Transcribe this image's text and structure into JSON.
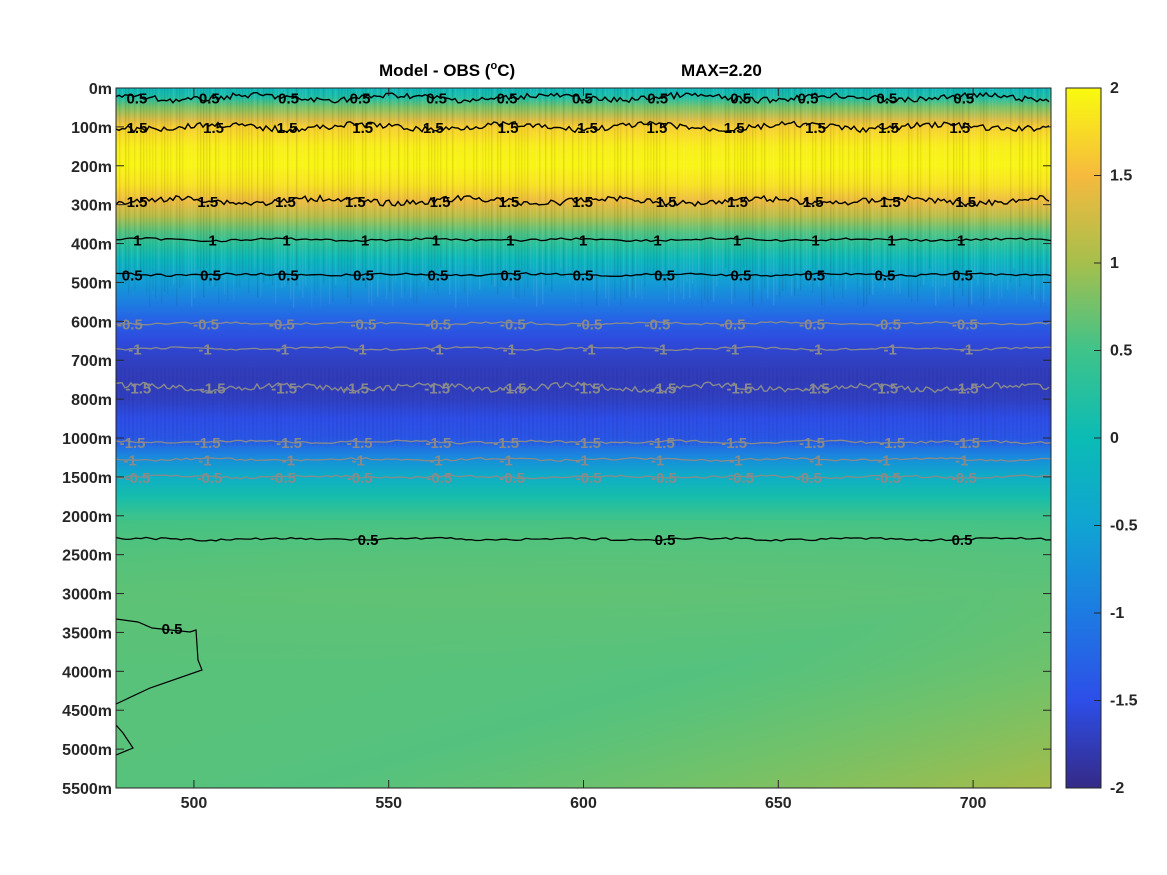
{
  "chart_data": {
    "type": "heatmap",
    "title": "Model - OBS (",
    "title_unit_sup": "o",
    "title_unit_tail": "C)",
    "max_label": "MAX=2.20",
    "xlabel": "",
    "ylabel": "",
    "x_range": [
      480,
      720
    ],
    "x_ticks": [
      500,
      550,
      600,
      650,
      700
    ],
    "y_ticks": [
      "0m",
      "100m",
      "200m",
      "300m",
      "400m",
      "500m",
      "600m",
      "700m",
      "800m",
      "1000m",
      "1500m",
      "2000m",
      "2500m",
      "3000m",
      "3500m",
      "4000m",
      "4500m",
      "5000m",
      "5500m"
    ],
    "colorbar": {
      "range": [
        -2,
        2
      ],
      "ticks": [
        2,
        1.5,
        1,
        0.5,
        0,
        -0.5,
        -1,
        -1.5,
        -2
      ],
      "tick_labels": [
        "2",
        "1.5",
        "1",
        "0.5",
        "0",
        "-0.5",
        "-1",
        "-1.5",
        "-2"
      ],
      "colormap": "parula"
    },
    "depth_profile": [
      {
        "level": 0,
        "value": -0.1
      },
      {
        "level": 0.25,
        "value": 0.2
      },
      {
        "level": 0.5,
        "value": 0.8
      },
      {
        "level": 0.8,
        "value": 1.3
      },
      {
        "level": 1,
        "value": 1.65
      },
      {
        "level": 1.5,
        "value": 1.9
      },
      {
        "level": 2,
        "value": 1.95
      },
      {
        "level": 2.5,
        "value": 1.8
      },
      {
        "level": 2.9,
        "value": 1.45
      },
      {
        "level": 3.3,
        "value": 1.1
      },
      {
        "level": 3.7,
        "value": 0.6
      },
      {
        "level": 4,
        "value": 0.3
      },
      {
        "level": 4.4,
        "value": -0.1
      },
      {
        "level": 5,
        "value": -0.6
      },
      {
        "level": 5.5,
        "value": -0.95
      },
      {
        "level": 6,
        "value": -1.3
      },
      {
        "level": 6.5,
        "value": -1.55
      },
      {
        "level": 7,
        "value": -1.7
      },
      {
        "level": 7.5,
        "value": -1.75
      },
      {
        "level": 8,
        "value": -1.7
      },
      {
        "level": 8.5,
        "value": -1.5
      },
      {
        "level": 9,
        "value": -1.4
      },
      {
        "level": 9.5,
        "value": -0.8
      },
      {
        "level": 10,
        "value": -0.3
      },
      {
        "level": 10.5,
        "value": 0.1
      },
      {
        "level": 11,
        "value": 0.45
      },
      {
        "level": 11.5,
        "value": 0.55
      },
      {
        "level": 12,
        "value": 0.6
      },
      {
        "level": 13,
        "value": 0.65
      },
      {
        "level": 14,
        "value": 0.62
      },
      {
        "level": 15,
        "value": 0.6
      },
      {
        "level": 16,
        "value": 0.6
      },
      {
        "level": 17,
        "value": 0.6
      },
      {
        "level": 18,
        "value": 0.6
      }
    ],
    "contours": [
      {
        "level": 0.25,
        "label": "0.5",
        "color": "black",
        "noisy": true
      },
      {
        "level": 1.0,
        "label": "1.5",
        "color": "black",
        "noisy": true
      },
      {
        "level": 2.9,
        "label": "1.5",
        "color": "black",
        "noisy": true
      },
      {
        "level": 3.9,
        "label": "1",
        "color": "black",
        "noisy": false
      },
      {
        "level": 4.8,
        "label": "0.5",
        "color": "black",
        "noisy": false
      },
      {
        "level": 6.05,
        "label": "-0.5",
        "color": "gray",
        "noisy": false
      },
      {
        "level": 6.7,
        "label": "-1",
        "color": "gray",
        "noisy": false
      },
      {
        "level": 7.7,
        "label": "-1.5",
        "color": "gray",
        "noisy": true
      },
      {
        "level": 9.1,
        "label": "-1.5",
        "color": "gray",
        "noisy": false
      },
      {
        "level": 9.55,
        "label": "-1",
        "color": "gray",
        "noisy": false
      },
      {
        "level": 10.0,
        "label": "-0.5",
        "color": "gray",
        "noisy": false
      },
      {
        "level": 11.6,
        "label": "0.5",
        "color": "black",
        "noisy": false
      }
    ]
  }
}
